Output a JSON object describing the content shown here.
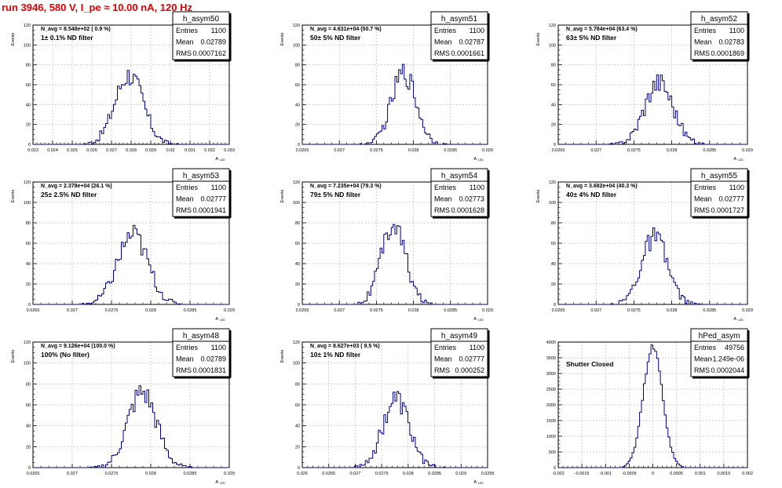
{
  "run_title": "run 3946,   580 V, I_pe ≈ 10.00 nA, 120 Hz",
  "colors": {
    "hist": "#00007f",
    "label": "#ff00ff",
    "title": "#e00000",
    "grid": "#aaaaaa"
  },
  "chart_data": [
    {
      "type": "histogram",
      "name": "h_asym50",
      "entries": "1100",
      "mean": "0.02789",
      "rms": "0.0007162",
      "navg": "N_avg = 8.548e+02 ( 0.9 %)",
      "label": "1± 0.1% ND filter",
      "xlim": [
        0.023,
        0.033
      ],
      "ylim": [
        0,
        120
      ],
      "xticks": [
        "0.023",
        "0.024",
        "0.025",
        "0.026",
        "0.027",
        "0.028",
        "0.029",
        "0.03",
        "0.031",
        "0.032",
        "0.033"
      ],
      "yticks": [
        "0",
        "20",
        "40",
        "60",
        "80",
        "100",
        "120"
      ],
      "xlabel": "A",
      "xlabel_sub": "LED",
      "ylabel": "Events",
      "mu": 0.02789,
      "sigma": 0.0007162,
      "peak": 70
    },
    {
      "type": "histogram",
      "name": "h_asym51",
      "entries": "1100",
      "mean": "0.02787",
      "rms": "0.0001661",
      "navg": "N_avg = 4.631e+04 (50.7 %)",
      "label": "50± 5% ND filter",
      "xlim": [
        0.0265,
        0.029
      ],
      "ylim": [
        0,
        120
      ],
      "xticks": [
        "0.0265",
        "0.027",
        "0.0275",
        "0.028",
        "0.0285",
        "0.029"
      ],
      "yticks": [
        "0",
        "20",
        "40",
        "60",
        "80",
        "100",
        "120"
      ],
      "xlabel": "A",
      "xlabel_sub": "LED",
      "ylabel": "Events",
      "mu": 0.02787,
      "sigma": 0.0001661,
      "peak": 72
    },
    {
      "type": "histogram",
      "name": "h_asym52",
      "entries": "1100",
      "mean": "0.02783",
      "rms": "0.0001869",
      "navg": "N_avg = 5.784e+04 (63.4 %)",
      "label": "63± 5% ND filter",
      "xlim": [
        0.0265,
        0.029
      ],
      "ylim": [
        0,
        120
      ],
      "xticks": [
        "0.0265",
        "0.027",
        "0.0275",
        "0.028",
        "0.0285",
        "0.029"
      ],
      "yticks": [
        "0",
        "20",
        "40",
        "60",
        "80",
        "100",
        "120"
      ],
      "xlabel": "A",
      "xlabel_sub": "LED",
      "ylabel": "Events",
      "mu": 0.02783,
      "sigma": 0.0001869,
      "peak": 63
    },
    {
      "type": "histogram",
      "name": "h_asym53",
      "entries": "1100",
      "mean": "0.02777",
      "rms": "0.0001941",
      "navg": "N_avg = 2.378e+04 (26.1 %)",
      "label": "25± 2.5% ND filter",
      "xlim": [
        0.0265,
        0.029
      ],
      "ylim": [
        0,
        120
      ],
      "xticks": [
        "0.0265",
        "0.027",
        "0.0275",
        "0.028",
        "0.0285",
        "0.029"
      ],
      "yticks": [
        "0",
        "20",
        "40",
        "60",
        "80",
        "100",
        "120"
      ],
      "xlabel": "A",
      "xlabel_sub": "LED",
      "ylabel": "Events",
      "mu": 0.02777,
      "sigma": 0.0001941,
      "peak": 68
    },
    {
      "type": "histogram",
      "name": "h_asym54",
      "entries": "1100",
      "mean": "0.02773",
      "rms": "0.0001628",
      "navg": "N_avg = 7.235e+04 (79.3 %)",
      "label": "79± 5% ND filter",
      "xlim": [
        0.0265,
        0.029
      ],
      "ylim": [
        0,
        120
      ],
      "xticks": [
        "0.0265",
        "0.027",
        "0.0275",
        "0.028",
        "0.0285",
        "0.029"
      ],
      "yticks": [
        "0",
        "20",
        "40",
        "60",
        "80",
        "100",
        "120"
      ],
      "xlabel": "A",
      "xlabel_sub": "LED",
      "ylabel": "Events",
      "mu": 0.02773,
      "sigma": 0.0001628,
      "peak": 78
    },
    {
      "type": "histogram",
      "name": "h_asym55",
      "entries": "1100",
      "mean": "0.02777",
      "rms": "0.0001727",
      "navg": "N_avg = 3.682e+04 (40.3 %)",
      "label": "40± 4% ND filter",
      "xlim": [
        0.0265,
        0.029
      ],
      "ylim": [
        0,
        120
      ],
      "xticks": [
        "0.0265",
        "0.027",
        "0.0275",
        "0.028",
        "0.0285",
        "0.029"
      ],
      "yticks": [
        "0",
        "20",
        "40",
        "60",
        "80",
        "100",
        "120"
      ],
      "xlabel": "A",
      "xlabel_sub": "LED",
      "ylabel": "Events",
      "mu": 0.02777,
      "sigma": 0.0001727,
      "peak": 65
    },
    {
      "type": "histogram",
      "name": "h_asym48",
      "entries": "1100",
      "mean": "0.02789",
      "rms": "0.0001831",
      "navg": "N_avg = 9.126e+04 (100.0 %)",
      "label": "100% (No filter)",
      "xlim": [
        0.0265,
        0.029
      ],
      "ylim": [
        0,
        120
      ],
      "xticks": [
        "0.0265",
        "0.027",
        "0.0275",
        "0.028",
        "0.0285",
        "0.029"
      ],
      "yticks": [
        "0",
        "20",
        "40",
        "60",
        "80",
        "100",
        "120"
      ],
      "xlabel": "A",
      "xlabel_sub": "LED",
      "ylabel": "Events",
      "mu": 0.02789,
      "sigma": 0.0001831,
      "peak": 72
    },
    {
      "type": "histogram",
      "name": "h_asym49",
      "entries": "1100",
      "mean": "0.02777",
      "rms": "0.000252",
      "navg": "N_avg = 8.627e+03 ( 9.5 %)",
      "label": "10± 1% ND filter",
      "xlim": [
        0.026,
        0.0295
      ],
      "ylim": [
        0,
        120
      ],
      "xticks": [
        "0.026",
        "0.0265",
        "0.027",
        "0.0275",
        "0.028",
        "0.0285",
        "0.029",
        "0.0295"
      ],
      "yticks": [
        "0",
        "20",
        "40",
        "60",
        "80",
        "100",
        "120"
      ],
      "xlabel": "A",
      "xlabel_sub": "LED",
      "ylabel": "Events",
      "mu": 0.02777,
      "sigma": 0.000252,
      "peak": 65
    },
    {
      "type": "histogram",
      "name": "hPed_asym",
      "entries": "49756",
      "mean": "-1.249e-06",
      "rms": "0.0002044",
      "navg": "",
      "label": "Shutter Closed",
      "xlim": [
        -0.002,
        0.002
      ],
      "ylim": [
        0,
        4000
      ],
      "xticks": [
        "-0.002",
        "-0.0015",
        "-0.001",
        "-0.0005",
        "0",
        "0.0005",
        "0.001",
        "0.0015",
        "0.002"
      ],
      "yticks": [
        "0",
        "500",
        "1000",
        "1500",
        "2000",
        "2500",
        "3000",
        "3500",
        "4000"
      ],
      "xlabel": "",
      "xlabel_sub": "",
      "ylabel": "",
      "mu": 0.0,
      "sigma": 0.0002044,
      "peak": 3850
    }
  ]
}
